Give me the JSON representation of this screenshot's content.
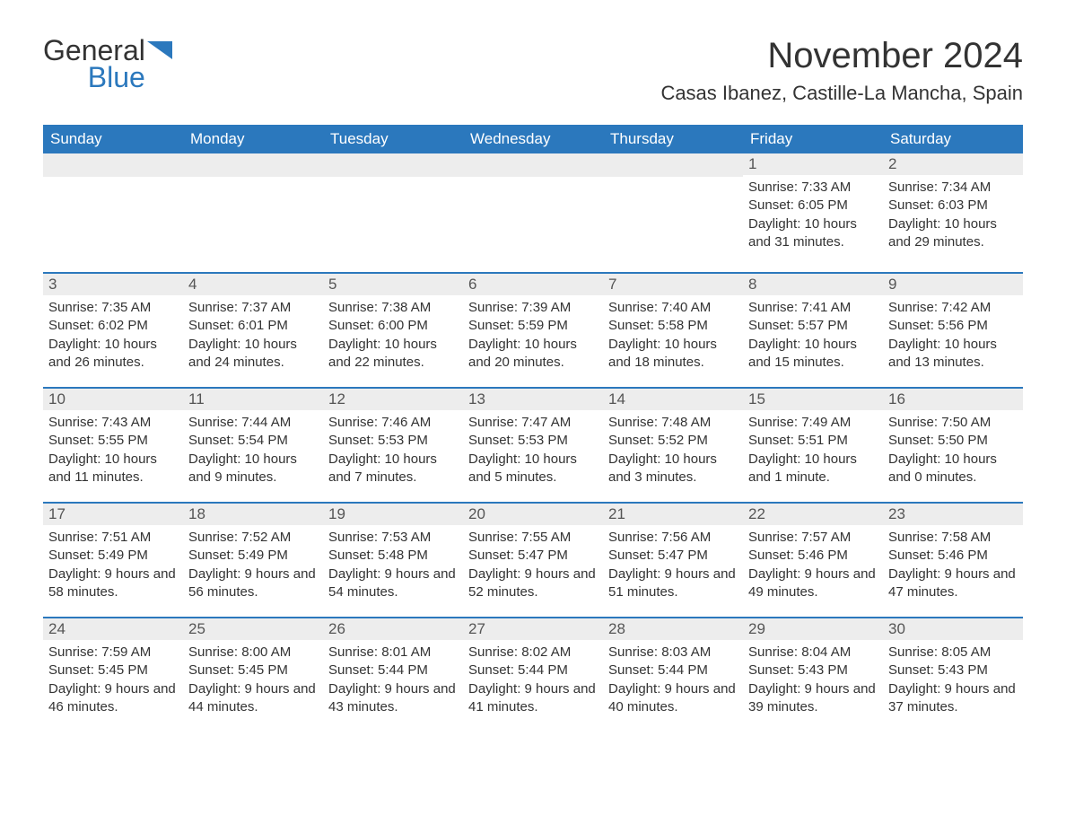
{
  "logo": {
    "word1": "General",
    "word2": "Blue"
  },
  "title": "November 2024",
  "location": "Casas Ibanez, Castille-La Mancha, Spain",
  "colors": {
    "header_bg": "#2b78bd",
    "header_text": "#ffffff",
    "daynum_bg": "#ededed",
    "row_border": "#2b78bd",
    "body_text": "#333333",
    "logo_blue": "#2b78bd"
  },
  "typography": {
    "title_fontsize": 40,
    "location_fontsize": 22,
    "weekday_fontsize": 17,
    "daynum_fontsize": 17,
    "info_fontsize": 15
  },
  "weekdays": [
    "Sunday",
    "Monday",
    "Tuesday",
    "Wednesday",
    "Thursday",
    "Friday",
    "Saturday"
  ],
  "weeks": [
    [
      null,
      null,
      null,
      null,
      null,
      {
        "n": "1",
        "sunrise": "7:33 AM",
        "sunset": "6:05 PM",
        "daylight": "10 hours and 31 minutes."
      },
      {
        "n": "2",
        "sunrise": "7:34 AM",
        "sunset": "6:03 PM",
        "daylight": "10 hours and 29 minutes."
      }
    ],
    [
      {
        "n": "3",
        "sunrise": "7:35 AM",
        "sunset": "6:02 PM",
        "daylight": "10 hours and 26 minutes."
      },
      {
        "n": "4",
        "sunrise": "7:37 AM",
        "sunset": "6:01 PM",
        "daylight": "10 hours and 24 minutes."
      },
      {
        "n": "5",
        "sunrise": "7:38 AM",
        "sunset": "6:00 PM",
        "daylight": "10 hours and 22 minutes."
      },
      {
        "n": "6",
        "sunrise": "7:39 AM",
        "sunset": "5:59 PM",
        "daylight": "10 hours and 20 minutes."
      },
      {
        "n": "7",
        "sunrise": "7:40 AM",
        "sunset": "5:58 PM",
        "daylight": "10 hours and 18 minutes."
      },
      {
        "n": "8",
        "sunrise": "7:41 AM",
        "sunset": "5:57 PM",
        "daylight": "10 hours and 15 minutes."
      },
      {
        "n": "9",
        "sunrise": "7:42 AM",
        "sunset": "5:56 PM",
        "daylight": "10 hours and 13 minutes."
      }
    ],
    [
      {
        "n": "10",
        "sunrise": "7:43 AM",
        "sunset": "5:55 PM",
        "daylight": "10 hours and 11 minutes."
      },
      {
        "n": "11",
        "sunrise": "7:44 AM",
        "sunset": "5:54 PM",
        "daylight": "10 hours and 9 minutes."
      },
      {
        "n": "12",
        "sunrise": "7:46 AM",
        "sunset": "5:53 PM",
        "daylight": "10 hours and 7 minutes."
      },
      {
        "n": "13",
        "sunrise": "7:47 AM",
        "sunset": "5:53 PM",
        "daylight": "10 hours and 5 minutes."
      },
      {
        "n": "14",
        "sunrise": "7:48 AM",
        "sunset": "5:52 PM",
        "daylight": "10 hours and 3 minutes."
      },
      {
        "n": "15",
        "sunrise": "7:49 AM",
        "sunset": "5:51 PM",
        "daylight": "10 hours and 1 minute."
      },
      {
        "n": "16",
        "sunrise": "7:50 AM",
        "sunset": "5:50 PM",
        "daylight": "10 hours and 0 minutes."
      }
    ],
    [
      {
        "n": "17",
        "sunrise": "7:51 AM",
        "sunset": "5:49 PM",
        "daylight": "9 hours and 58 minutes."
      },
      {
        "n": "18",
        "sunrise": "7:52 AM",
        "sunset": "5:49 PM",
        "daylight": "9 hours and 56 minutes."
      },
      {
        "n": "19",
        "sunrise": "7:53 AM",
        "sunset": "5:48 PM",
        "daylight": "9 hours and 54 minutes."
      },
      {
        "n": "20",
        "sunrise": "7:55 AM",
        "sunset": "5:47 PM",
        "daylight": "9 hours and 52 minutes."
      },
      {
        "n": "21",
        "sunrise": "7:56 AM",
        "sunset": "5:47 PM",
        "daylight": "9 hours and 51 minutes."
      },
      {
        "n": "22",
        "sunrise": "7:57 AM",
        "sunset": "5:46 PM",
        "daylight": "9 hours and 49 minutes."
      },
      {
        "n": "23",
        "sunrise": "7:58 AM",
        "sunset": "5:46 PM",
        "daylight": "9 hours and 47 minutes."
      }
    ],
    [
      {
        "n": "24",
        "sunrise": "7:59 AM",
        "sunset": "5:45 PM",
        "daylight": "9 hours and 46 minutes."
      },
      {
        "n": "25",
        "sunrise": "8:00 AM",
        "sunset": "5:45 PM",
        "daylight": "9 hours and 44 minutes."
      },
      {
        "n": "26",
        "sunrise": "8:01 AM",
        "sunset": "5:44 PM",
        "daylight": "9 hours and 43 minutes."
      },
      {
        "n": "27",
        "sunrise": "8:02 AM",
        "sunset": "5:44 PM",
        "daylight": "9 hours and 41 minutes."
      },
      {
        "n": "28",
        "sunrise": "8:03 AM",
        "sunset": "5:44 PM",
        "daylight": "9 hours and 40 minutes."
      },
      {
        "n": "29",
        "sunrise": "8:04 AM",
        "sunset": "5:43 PM",
        "daylight": "9 hours and 39 minutes."
      },
      {
        "n": "30",
        "sunrise": "8:05 AM",
        "sunset": "5:43 PM",
        "daylight": "9 hours and 37 minutes."
      }
    ]
  ],
  "labels": {
    "sunrise_prefix": "Sunrise: ",
    "sunset_prefix": "Sunset: ",
    "daylight_prefix": "Daylight: "
  }
}
